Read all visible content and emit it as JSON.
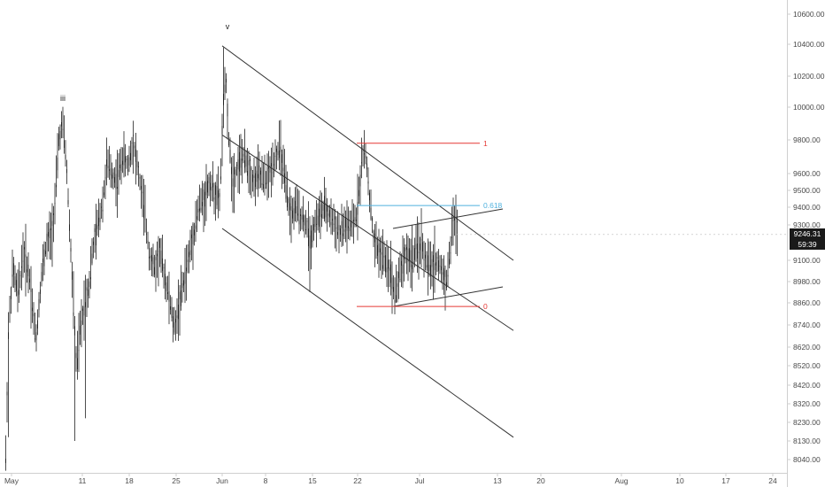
{
  "chart_data": {
    "type": "candlestick",
    "y_axis": {
      "position": "right",
      "ticks": [
        "10600.00",
        "10400.00",
        "10200.00",
        "10000.00",
        "9800.00",
        "9600.00",
        "9500.00",
        "9400.00",
        "9300.00",
        "9100.00",
        "8980.00",
        "8860.00",
        "8740.00",
        "8620.00",
        "8520.00",
        "8420.00",
        "8320.00",
        "8230.00",
        "8130.00",
        "8040.00"
      ],
      "ylim": [
        8000,
        10700
      ]
    },
    "x_axis": {
      "ticks": [
        "May",
        "11",
        "18",
        "25",
        "Jun",
        "8",
        "15",
        "22",
        "Jul",
        "13",
        "20",
        "Aug",
        "10",
        "17",
        "24"
      ]
    },
    "price_tags": {
      "last_price": "9246.31",
      "countdown": "59:39"
    },
    "wave_labels": [
      "iii",
      "v"
    ],
    "fib_levels": [
      {
        "label": "1",
        "value": 9780,
        "color": "#e53935"
      },
      {
        "label": "0.618",
        "value": 9410,
        "color": "#4fb1de"
      },
      {
        "label": "0",
        "value": 8840,
        "color": "#e53935"
      }
    ],
    "channel_lines": [
      {
        "name": "upper",
        "from": [
          "Jun",
          10390
        ],
        "to": [
          "Jul 13",
          9100
        ]
      },
      {
        "name": "middle",
        "from": [
          "Jun",
          9830
        ],
        "to": [
          "Jul 13",
          8710
        ]
      },
      {
        "name": "lower",
        "from": [
          "Jun",
          9280
        ],
        "to": [
          "Jul 13",
          8150
        ]
      }
    ],
    "wedge_lines": [
      {
        "name": "wedge-top",
        "from": [
          "Jun 26",
          9280
        ],
        "to": [
          "Jul 13",
          9390
        ]
      },
      {
        "name": "wedge-bottom",
        "from": [
          "Jun 26",
          8840
        ],
        "to": [
          "Jul 13",
          8950
        ]
      }
    ],
    "colors": {
      "candle": "#222222",
      "channel": "#333333",
      "fib_red": "#e53935",
      "fib_blue": "#4fb1de",
      "last_price_bg": "#1a1a1a",
      "axis_text": "#4a4a4a"
    }
  }
}
